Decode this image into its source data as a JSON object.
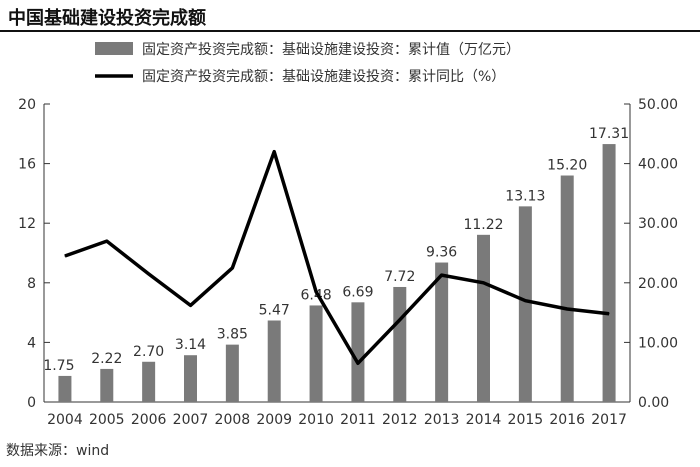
{
  "title": "中国基础建设投资完成额",
  "source": "数据来源：wind",
  "colors": {
    "bar": "#7a7a7a",
    "line": "#000000",
    "axis": "#333333"
  },
  "chart_data": {
    "type": "bar+line",
    "categories": [
      "2004",
      "2005",
      "2006",
      "2007",
      "2008",
      "2009",
      "2010",
      "2011",
      "2012",
      "2013",
      "2014",
      "2015",
      "2016",
      "2017"
    ],
    "series": [
      {
        "name": "固定资产投资完成额：基础设施建设投资：累计值（万亿元）",
        "type": "bar",
        "axis": "left",
        "values": [
          1.75,
          2.22,
          2.7,
          3.14,
          3.85,
          5.47,
          6.48,
          6.69,
          7.72,
          9.36,
          11.22,
          13.13,
          15.2,
          17.31
        ],
        "labels": [
          "1.75",
          "2.22",
          "2.70",
          "3.14",
          "3.85",
          "5.47",
          "6.48",
          "6.69",
          "7.72",
          "9.36",
          "11.22",
          "13.13",
          "15.20",
          "17.31"
        ]
      },
      {
        "name": "固定资产投资完成额：基础设施建设投资：累计同比（%）",
        "type": "line",
        "axis": "right",
        "values": [
          24.5,
          27.0,
          21.5,
          16.2,
          22.5,
          42.0,
          18.5,
          6.5,
          13.8,
          21.3,
          20.0,
          17.0,
          15.6,
          14.8
        ]
      }
    ],
    "left_axis": {
      "ylim": [
        0,
        20
      ],
      "ticks": [
        "0",
        "4",
        "8",
        "12",
        "16",
        "20"
      ]
    },
    "right_axis": {
      "ylim": [
        0,
        50
      ],
      "ticks": [
        "0.00",
        "10.00",
        "20.00",
        "30.00",
        "40.00",
        "50.00"
      ]
    },
    "legend": "top-center",
    "grid": false
  }
}
